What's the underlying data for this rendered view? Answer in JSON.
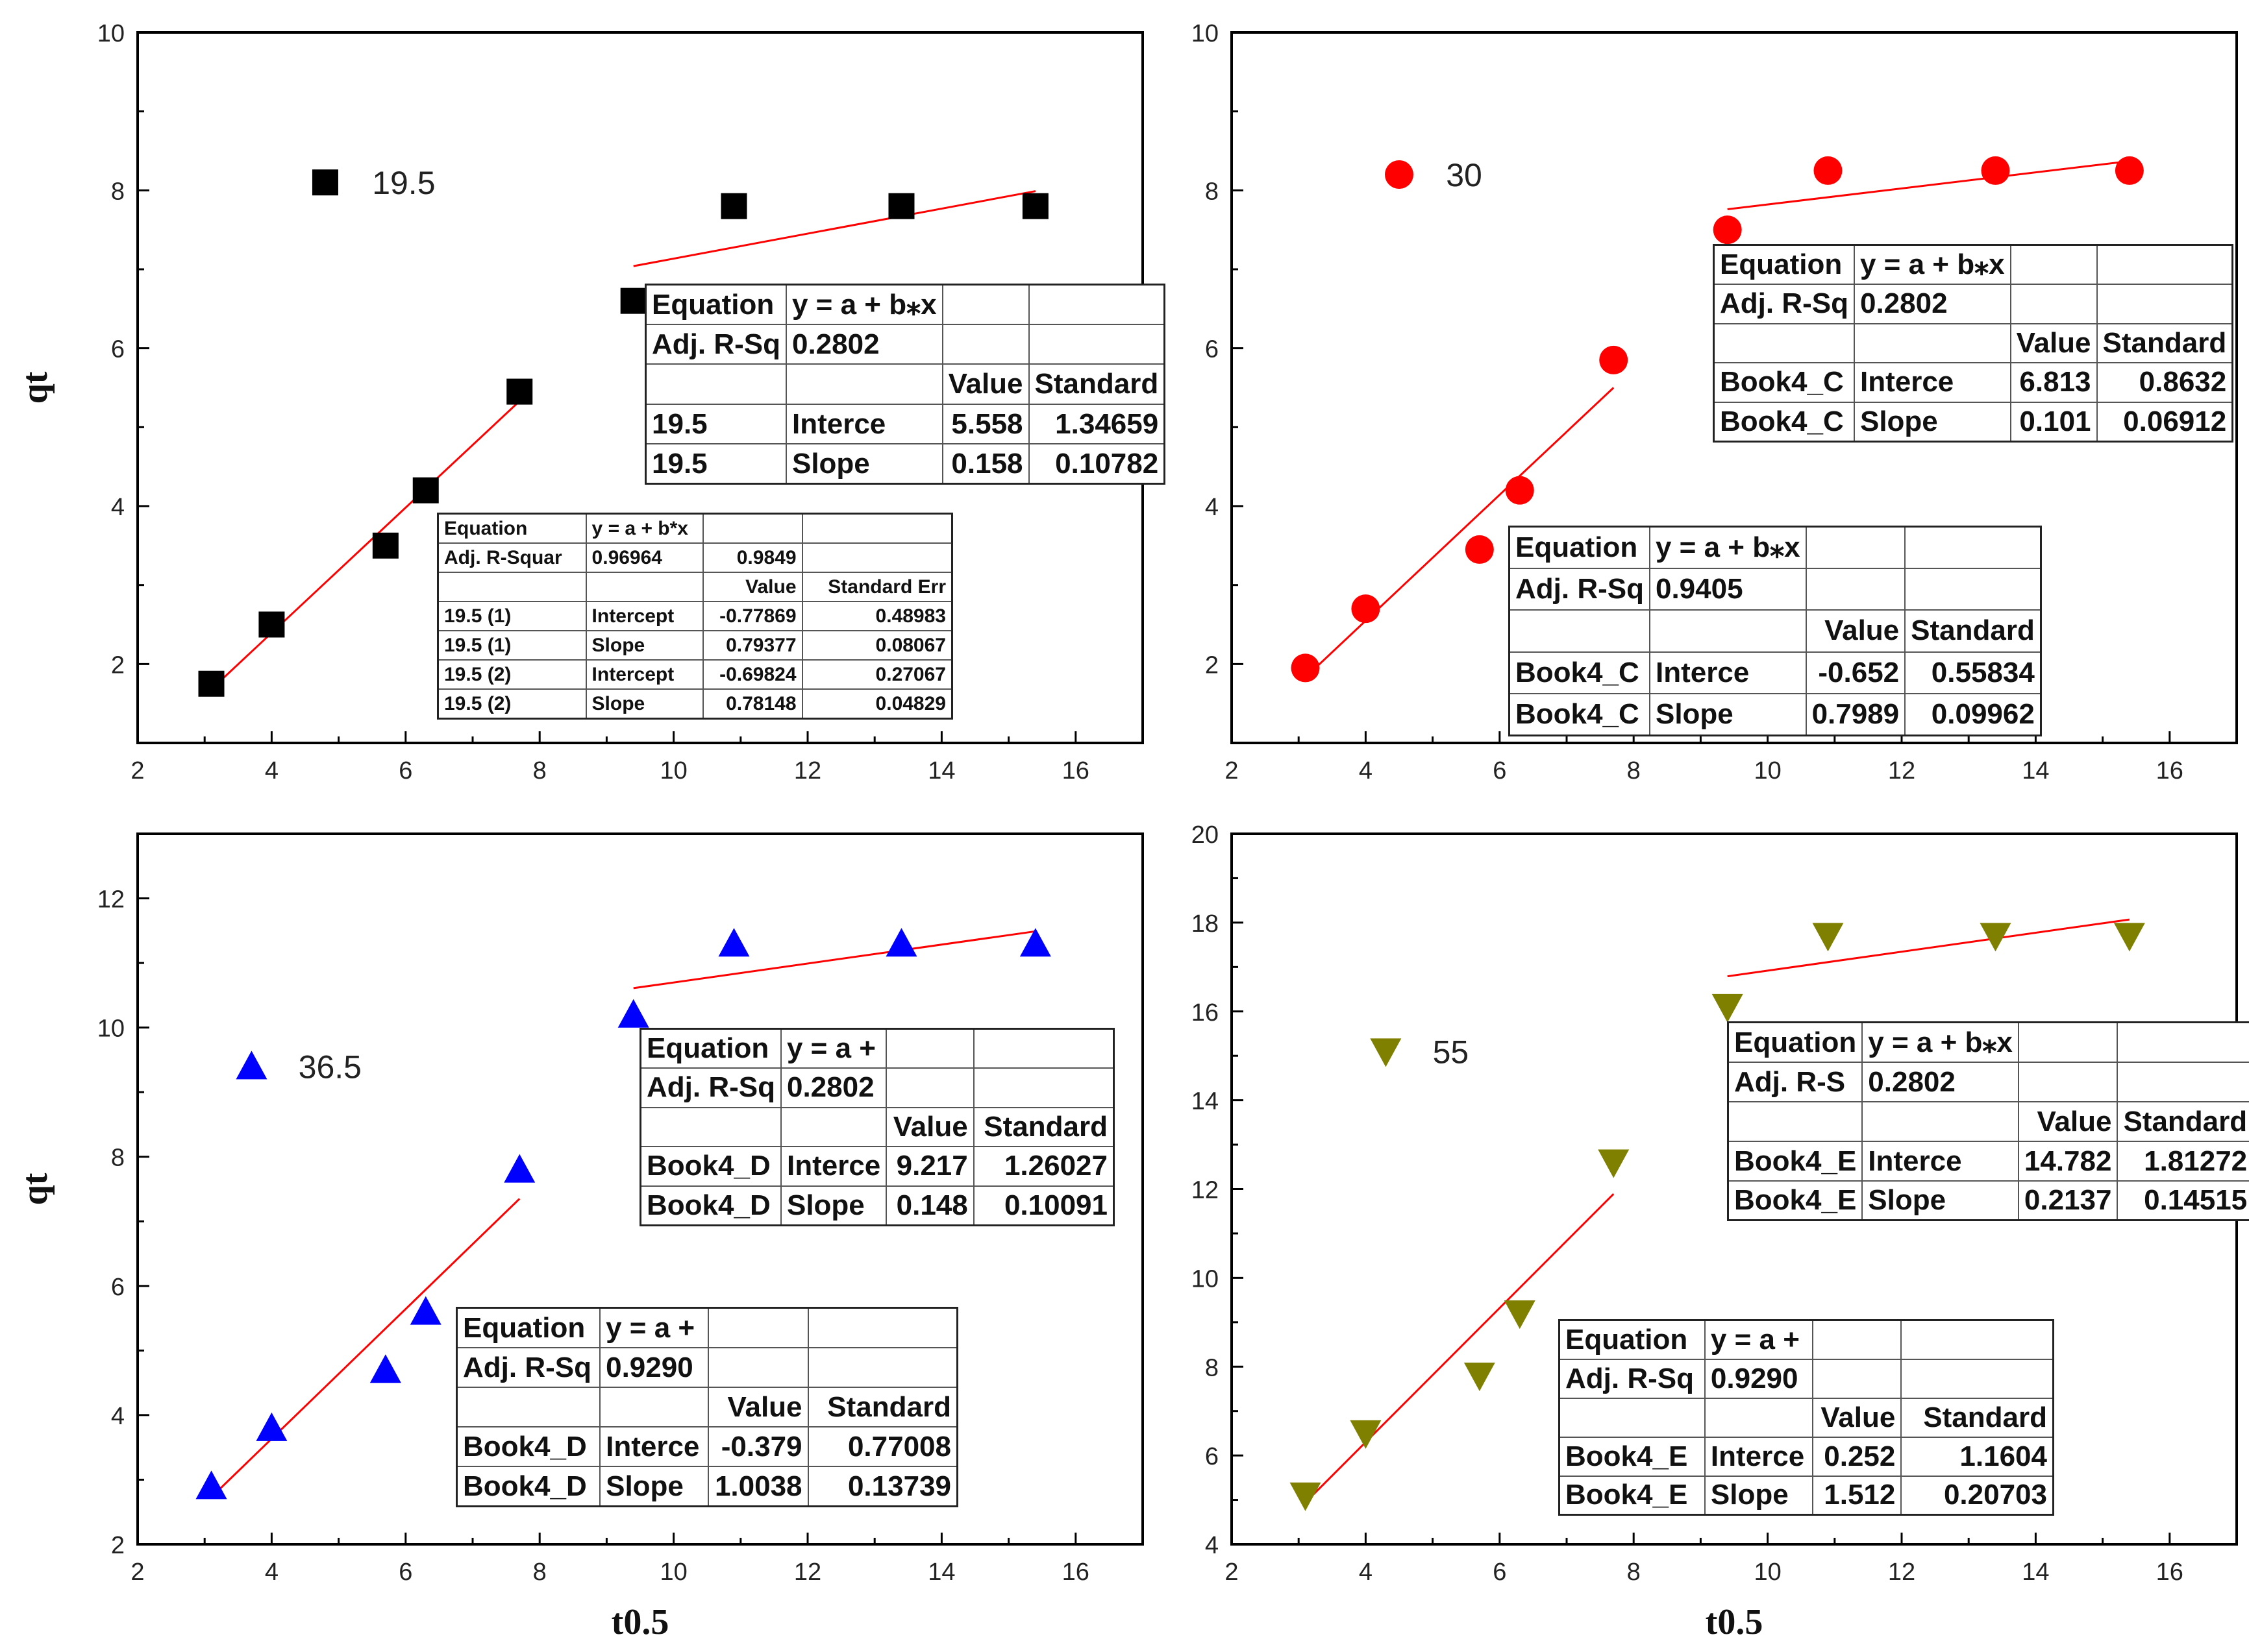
{
  "chart_data": [
    {
      "type": "scatter",
      "panel": "top-left",
      "legend": "19.5",
      "color": "#000000",
      "marker": "square",
      "xlabel": "",
      "ylabel": "qt",
      "xlim": [
        2,
        17
      ],
      "ylim": [
        1,
        10
      ],
      "xticks": [
        2,
        4,
        6,
        8,
        10,
        12,
        14,
        16
      ],
      "yticks": [
        2,
        4,
        6,
        8,
        10
      ],
      "points": [
        [
          3.1,
          1.75
        ],
        [
          4.0,
          2.5
        ],
        [
          5.7,
          3.5
        ],
        [
          6.3,
          4.2
        ],
        [
          7.7,
          5.45
        ],
        [
          9.4,
          6.6
        ],
        [
          10.9,
          7.8
        ],
        [
          13.4,
          7.8
        ],
        [
          15.4,
          7.8
        ],
        [
          4.8,
          8.1
        ]
      ],
      "fit_lines": [
        {
          "x": [
            3.1,
            7.7
          ],
          "y": [
            1.68,
            5.33
          ]
        },
        {
          "x": [
            9.4,
            15.4
          ],
          "y": [
            7.04,
            7.99
          ]
        }
      ],
      "tables": [
        {
          "style": "small",
          "rows": [
            [
              "Equation",
              "y = a + b*x",
              "",
              ""
            ],
            [
              "Adj. R-Squar",
              "0.96964",
              "0.9849",
              ""
            ],
            [
              "",
              "",
              "Value",
              "Standard Err"
            ],
            [
              "19.5 (1)",
              "Intercept",
              "-0.77869",
              "0.48983"
            ],
            [
              "19.5 (1)",
              "Slope",
              "0.79377",
              "0.08067"
            ],
            [
              "19.5 (2)",
              "Intercept",
              "-0.69824",
              "0.27067"
            ],
            [
              "19.5 (2)",
              "Slope",
              "0.78148",
              "0.04829"
            ]
          ]
        },
        {
          "style": "large",
          "rows": [
            [
              "Equation",
              "y = a + b⁎x",
              "",
              ""
            ],
            [
              "Adj. R-Sq",
              "0.2802",
              "",
              ""
            ],
            [
              "",
              "",
              "Value",
              "Standard"
            ],
            [
              "19.5",
              "Interce",
              "5.558",
              "1.34659"
            ],
            [
              "19.5",
              "Slope",
              "0.158",
              "0.10782"
            ]
          ]
        }
      ]
    },
    {
      "type": "scatter",
      "panel": "top-right",
      "legend": "30",
      "color": "#ff0000",
      "marker": "circle",
      "xlabel": "",
      "ylabel": "",
      "xlim": [
        2,
        17
      ],
      "ylim": [
        1,
        10
      ],
      "xticks": [
        2,
        4,
        6,
        8,
        10,
        12,
        14,
        16
      ],
      "yticks": [
        2,
        4,
        6,
        8,
        10
      ],
      "points": [
        [
          3.1,
          1.95
        ],
        [
          4.0,
          2.7
        ],
        [
          5.7,
          3.45
        ],
        [
          6.3,
          4.2
        ],
        [
          7.7,
          5.85
        ],
        [
          9.4,
          7.5
        ],
        [
          10.9,
          8.25
        ],
        [
          13.4,
          8.25
        ],
        [
          15.4,
          8.25
        ],
        [
          4.5,
          8.2
        ]
      ],
      "fit_lines": [
        {
          "x": [
            3.1,
            7.7
          ],
          "y": [
            1.83,
            5.5
          ]
        },
        {
          "x": [
            9.4,
            15.4
          ],
          "y": [
            7.76,
            8.37
          ]
        }
      ],
      "tables": [
        {
          "style": "large",
          "rows": [
            [
              "Equation",
              "y = a + b⁎x",
              "",
              ""
            ],
            [
              "Adj. R-Sq",
              "0.2802",
              "",
              ""
            ],
            [
              "",
              "",
              "Value",
              "Standard"
            ],
            [
              "Book4_C",
              "Interce",
              "6.813",
              "0.8632"
            ],
            [
              "Book4_C",
              "Slope",
              "0.101",
              "0.06912"
            ]
          ]
        },
        {
          "style": "large",
          "rows": [
            [
              "Equation",
              "y = a + b⁎x",
              "",
              ""
            ],
            [
              "Adj. R-Sq",
              "0.9405",
              "",
              ""
            ],
            [
              "",
              "",
              "Value",
              "Standard"
            ],
            [
              "Book4_C",
              "Interce",
              "-0.652",
              "0.55834"
            ],
            [
              "Book4_C",
              "Slope",
              "0.7989",
              "0.09962"
            ]
          ]
        }
      ]
    },
    {
      "type": "scatter",
      "panel": "bottom-left",
      "legend": "36.5",
      "color": "#0000ff",
      "marker": "triangle-up",
      "xlabel": "t0.5",
      "ylabel": "qt",
      "xlim": [
        2,
        17
      ],
      "ylim": [
        2,
        13
      ],
      "xticks": [
        2,
        4,
        6,
        8,
        10,
        12,
        14,
        16
      ],
      "yticks": [
        2,
        4,
        6,
        8,
        10,
        12
      ],
      "points": [
        [
          3.1,
          2.9
        ],
        [
          4.0,
          3.8
        ],
        [
          5.7,
          4.7
        ],
        [
          6.3,
          5.6
        ],
        [
          7.7,
          7.8
        ],
        [
          9.4,
          10.2
        ],
        [
          10.9,
          11.3
        ],
        [
          13.4,
          11.3
        ],
        [
          15.4,
          11.3
        ],
        [
          3.7,
          9.4
        ]
      ],
      "fit_lines": [
        {
          "x": [
            3.1,
            7.7
          ],
          "y": [
            2.73,
            7.35
          ]
        },
        {
          "x": [
            9.4,
            15.4
          ],
          "y": [
            10.61,
            11.49
          ]
        }
      ],
      "tables": [
        {
          "style": "large",
          "rows": [
            [
              "Equation",
              "y = a +",
              "",
              ""
            ],
            [
              "Adj. R-Sq",
              "0.2802",
              "",
              ""
            ],
            [
              "",
              "",
              "Value",
              "Standard"
            ],
            [
              "Book4_D",
              "Interce",
              "9.217",
              "1.26027"
            ],
            [
              "Book4_D",
              "Slope",
              "0.148",
              "0.10091"
            ]
          ]
        },
        {
          "style": "large",
          "rows": [
            [
              "Equation",
              "y = a +",
              "",
              ""
            ],
            [
              "Adj. R-Sq",
              "0.9290",
              "",
              ""
            ],
            [
              "",
              "",
              "Value",
              "Standard"
            ],
            [
              "Book4_D",
              "Interce",
              "-0.379",
              "0.77008"
            ],
            [
              "Book4_D",
              "Slope",
              "1.0038",
              "0.13739"
            ]
          ]
        }
      ]
    },
    {
      "type": "scatter",
      "panel": "bottom-right",
      "legend": "55",
      "color": "#808000",
      "marker": "triangle-down",
      "xlabel": "t0.5",
      "ylabel": "",
      "xlim": [
        2,
        17
      ],
      "ylim": [
        4,
        20
      ],
      "xticks": [
        2,
        4,
        6,
        8,
        10,
        12,
        14,
        16
      ],
      "yticks": [
        4,
        6,
        8,
        10,
        12,
        14,
        16,
        18,
        20
      ],
      "points": [
        [
          3.1,
          5.1
        ],
        [
          4.0,
          6.5
        ],
        [
          5.7,
          7.8
        ],
        [
          6.3,
          9.2
        ],
        [
          7.7,
          12.6
        ],
        [
          9.4,
          16.1
        ],
        [
          10.9,
          17.7
        ],
        [
          13.4,
          17.7
        ],
        [
          15.4,
          17.7
        ],
        [
          4.3,
          15.1
        ]
      ],
      "fit_lines": [
        {
          "x": [
            3.1,
            7.7
          ],
          "y": [
            4.94,
            11.89
          ]
        },
        {
          "x": [
            9.4,
            15.4
          ],
          "y": [
            16.79,
            18.07
          ]
        }
      ],
      "tables": [
        {
          "style": "large",
          "rows": [
            [
              "Equation",
              "y = a + b⁎x",
              "",
              ""
            ],
            [
              "Adj. R-S",
              "0.2802",
              "",
              ""
            ],
            [
              "",
              "",
              "Value",
              "Standard"
            ],
            [
              "Book4_E",
              "Interce",
              "14.782",
              "1.81272"
            ],
            [
              "Book4_E",
              "Slope",
              "0.2137",
              "0.14515"
            ]
          ]
        },
        {
          "style": "large",
          "rows": [
            [
              "Equation",
              "y = a +",
              "",
              ""
            ],
            [
              "Adj. R-Sq",
              "0.9290",
              "",
              ""
            ],
            [
              "",
              "",
              "Value",
              "Standard"
            ],
            [
              "Book4_E",
              "Interce",
              "0.252",
              "1.1604"
            ],
            [
              "Book4_E",
              "Slope",
              "1.512",
              "0.20703"
            ]
          ]
        }
      ]
    }
  ]
}
